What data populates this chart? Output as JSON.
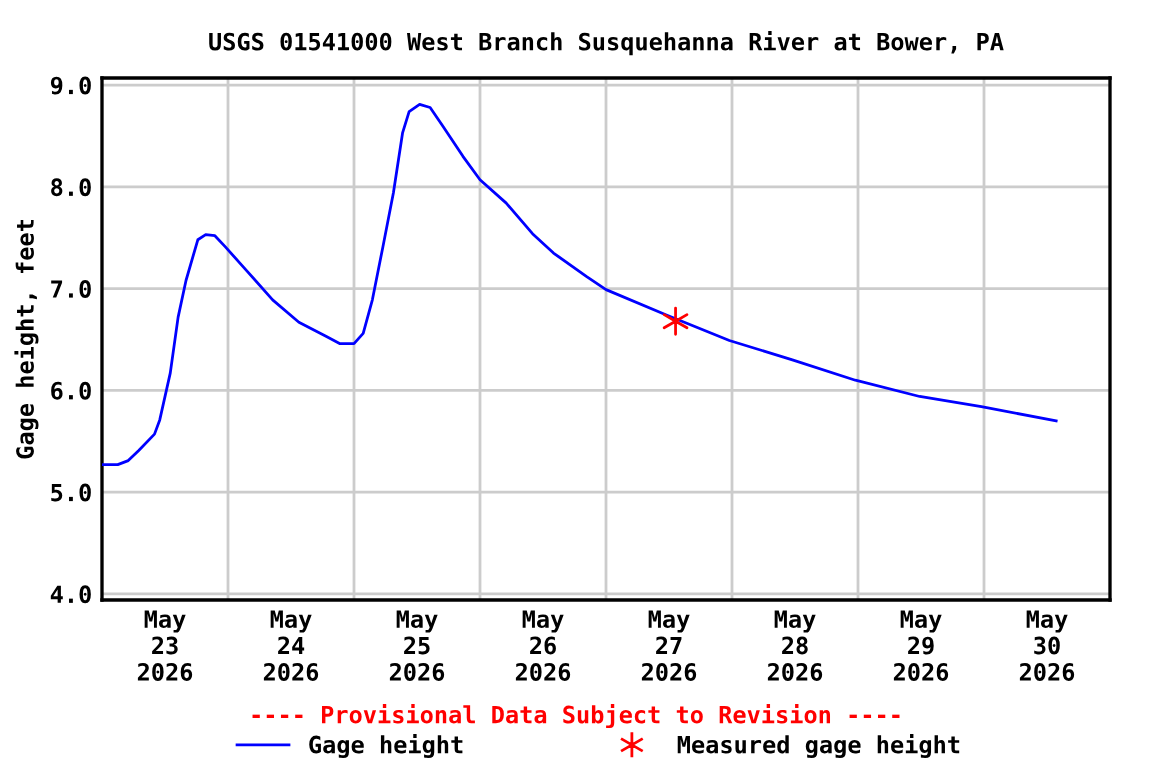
{
  "chart_data": {
    "type": "line",
    "title": "USGS 01541000 West Branch Susquehanna River at Bower, PA",
    "ylabel": "Gage height, feet",
    "annotations": [
      "---- Provisional Data Subject to Revision ----"
    ],
    "xlim": [
      "2026-05-23",
      "2026-05-31"
    ],
    "ylim": [
      3.94,
      9.07
    ],
    "xticks": [
      {
        "value": "2026-05-23T12:00",
        "label": "May\n23\n2026"
      },
      {
        "value": "2026-05-24T12:00",
        "label": "May\n24\n2026"
      },
      {
        "value": "2026-05-25T12:00",
        "label": "May\n25\n2026"
      },
      {
        "value": "2026-05-26T12:00",
        "label": "May\n26\n2026"
      },
      {
        "value": "2026-05-27T12:00",
        "label": "May\n27\n2026"
      },
      {
        "value": "2026-05-28T12:00",
        "label": "May\n28\n2026"
      },
      {
        "value": "2026-05-29T12:00",
        "label": "May\n29\n2026"
      },
      {
        "value": "2026-05-30T12:00",
        "label": "May\n30\n2026"
      },
      {
        "value": "2026-05-24",
        "label": null
      },
      {
        "value": "2026-05-25",
        "label": null
      },
      {
        "value": "2026-05-26",
        "label": null
      },
      {
        "value": "2026-05-27",
        "label": null
      },
      {
        "value": "2026-05-28",
        "label": null
      },
      {
        "value": "2026-05-29",
        "label": null
      },
      {
        "value": "2026-05-30",
        "label": null
      }
    ],
    "yticks": [
      {
        "value": 4,
        "label": "4.0"
      },
      {
        "value": 5,
        "label": "5.0"
      },
      {
        "value": 6,
        "label": "6.0"
      },
      {
        "value": 7,
        "label": "7.0"
      },
      {
        "value": 8,
        "label": "8.0"
      },
      {
        "value": 9,
        "label": "9.0"
      }
    ],
    "grid": true,
    "legend": "bottom",
    "series": [
      {
        "name": "Gage height",
        "color": "#0000ff",
        "marker": "none",
        "x": [
          "2026-05-23T00:00",
          "2026-05-23T03:00",
          "2026-05-23T05:00",
          "2026-05-23T07:00",
          "2026-05-23T10:00",
          "2026-05-23T11:00",
          "2026-05-23T13:00",
          "2026-05-23T14:30",
          "2026-05-23T16:00",
          "2026-05-23T18:15",
          "2026-05-23T19:45",
          "2026-05-23T21:30",
          "2026-05-23T23:30",
          "2026-05-24T03:30",
          "2026-05-24T08:30",
          "2026-05-24T13:30",
          "2026-05-24T18:45",
          "2026-05-24T21:15",
          "2026-05-25T00:00",
          "2026-05-25T01:45",
          "2026-05-25T03:30",
          "2026-05-25T05:30",
          "2026-05-25T07:30",
          "2026-05-25T09:15",
          "2026-05-25T10:30",
          "2026-05-25T12:30",
          "2026-05-25T14:30",
          "2026-05-25T17:00",
          "2026-05-25T20:45",
          "2026-05-26T00:00",
          "2026-05-26T05:00",
          "2026-05-26T10:00",
          "2026-05-26T14:00",
          "2026-05-26T20:15",
          "2026-05-27T00:00",
          "2026-05-27T11:30",
          "2026-05-27T23:30",
          "2026-05-28T11:30",
          "2026-05-28T23:30",
          "2026-05-29T11:45",
          "2026-05-29T23:30",
          "2026-05-30T13:45"
        ],
        "values": [
          5.27,
          5.27,
          5.31,
          5.41,
          5.57,
          5.71,
          6.17,
          6.72,
          7.08,
          7.48,
          7.53,
          7.52,
          7.41,
          7.18,
          6.89,
          6.67,
          6.53,
          6.46,
          6.46,
          6.56,
          6.89,
          7.41,
          7.94,
          8.53,
          8.74,
          8.81,
          8.78,
          8.59,
          8.3,
          8.07,
          7.84,
          7.54,
          7.35,
          7.12,
          6.99,
          6.74,
          6.49,
          6.3,
          6.1,
          5.94,
          5.84,
          5.7
        ]
      },
      {
        "name": "Measured gage height",
        "color": "#ff0000",
        "type": "scatter",
        "marker": "cross",
        "x": [
          "2026-05-27T13:15"
        ],
        "values": [
          6.68
        ]
      }
    ]
  }
}
